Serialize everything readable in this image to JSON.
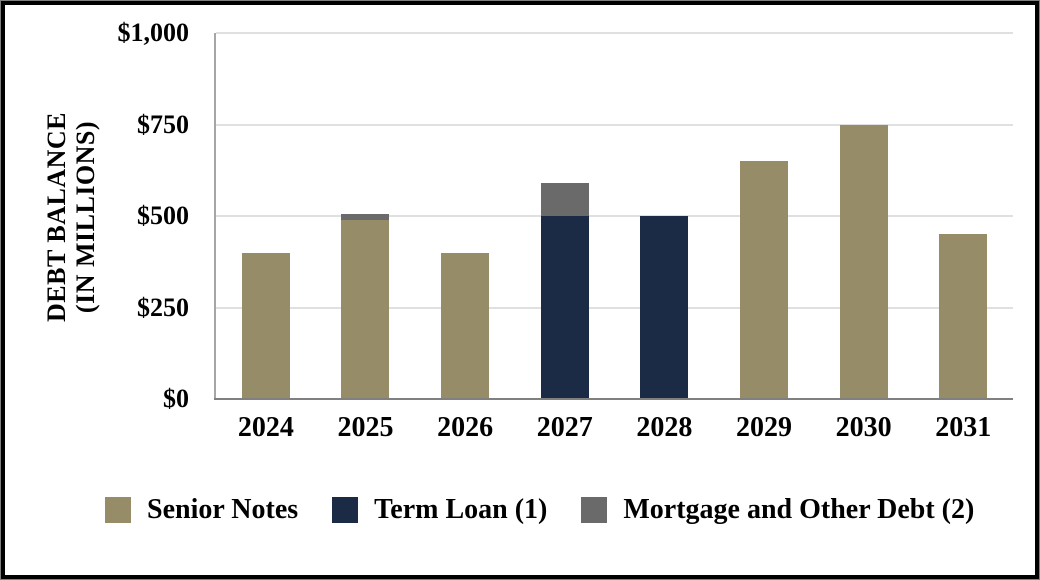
{
  "chart_data": {
    "type": "bar",
    "stacked": true,
    "title": "",
    "ylabel_lines": [
      "DEBT BALANCE",
      "(IN MILLIONS)"
    ],
    "categories": [
      "2024",
      "2025",
      "2026",
      "2027",
      "2028",
      "2029",
      "2030",
      "2031"
    ],
    "series": [
      {
        "name": "Senior Notes",
        "key": "senior-notes",
        "color": "#968D68",
        "values": [
          400,
          490,
          400,
          0,
          0,
          650,
          750,
          450
        ]
      },
      {
        "name": "Term Loan (1)",
        "key": "term-loan",
        "color": "#1B2A45",
        "values": [
          0,
          0,
          0,
          500,
          500,
          0,
          0,
          0
        ]
      },
      {
        "name": "Mortgage and Other Debt (2)",
        "key": "mortgage-other-debt",
        "color": "#6A6A6A",
        "values": [
          0,
          15,
          0,
          90,
          0,
          0,
          0,
          0
        ]
      }
    ],
    "ylim": [
      0,
      1000
    ],
    "yticks": [
      {
        "value": 0,
        "label": "$0"
      },
      {
        "value": 250,
        "label": "$250"
      },
      {
        "value": 500,
        "label": "$500"
      },
      {
        "value": 750,
        "label": "$750"
      },
      {
        "value": 1000,
        "label": "$1,000"
      }
    ],
    "grid": true,
    "legend_position": "bottom"
  },
  "colors": {
    "background": "#FFFFFF",
    "frame_border": "#000000",
    "frame_outer_edge": "#7F7F7F",
    "gridline": "#E0E0E0",
    "y_axis_line": "#A6A6A6",
    "x_axis_line": "#808080",
    "text": "#000000"
  }
}
